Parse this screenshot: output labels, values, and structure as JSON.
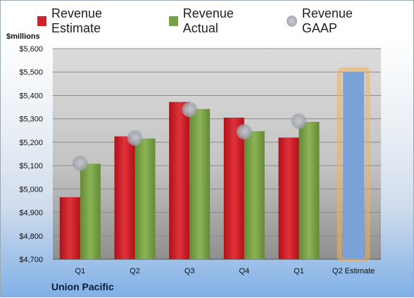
{
  "chart_data": {
    "type": "bar",
    "categories": [
      "Q1",
      "Q2",
      "Q3",
      "Q4",
      "Q1",
      "Q2 Estimate"
    ],
    "series": [
      {
        "name": "Revenue Estimate",
        "values": [
          4965,
          5225,
          5372,
          5305,
          5220,
          null
        ],
        "color": "#d0202a"
      },
      {
        "name": "Revenue Actual",
        "values": [
          5108,
          5216,
          5342,
          5247,
          5287,
          null
        ],
        "color": "#7aa047"
      },
      {
        "name": "Revenue GAAP",
        "type": "scatter",
        "values": [
          5110,
          5218,
          5340,
          5245,
          5290,
          null
        ],
        "color": "#aeb1ba"
      }
    ],
    "forecast": {
      "category": "Q2 Estimate",
      "value": 5500,
      "color": "#7aa2d8",
      "glow": "#f3b05a"
    },
    "ylabel": "$millions",
    "ylim": [
      4700,
      5600
    ],
    "yticks": [
      "$4,700",
      "$4,800",
      "$4,900",
      "$5,000",
      "$5,100",
      "$5,200",
      "$5,300",
      "$5,400",
      "$5,500",
      "$5,600"
    ],
    "grid": true,
    "legend_position": "top"
  },
  "company": "Union Pacific"
}
